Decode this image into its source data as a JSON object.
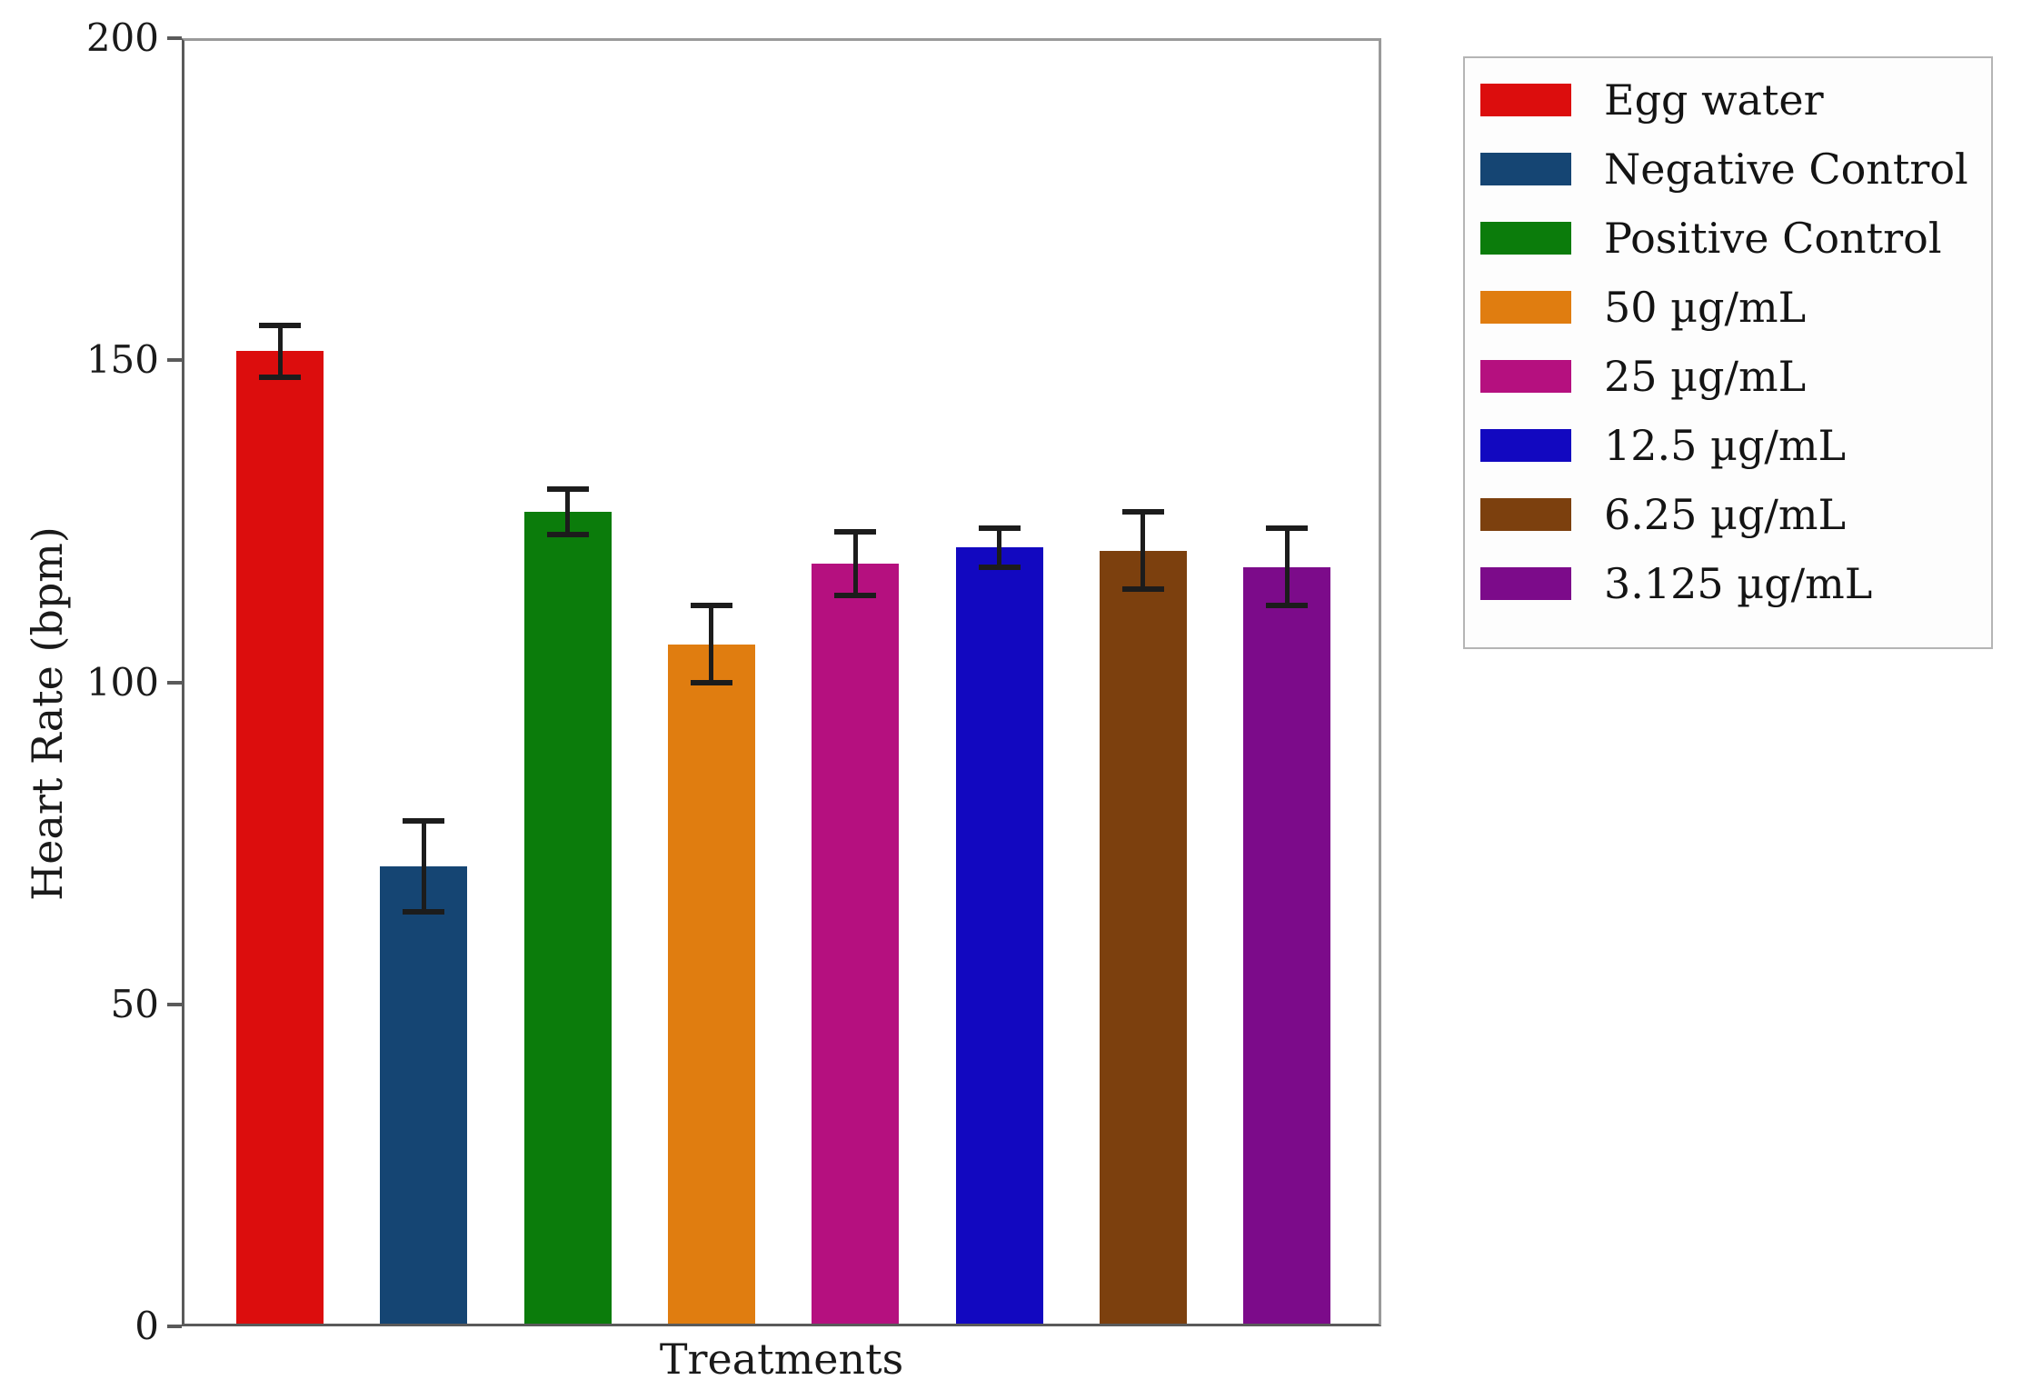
{
  "chart_data": {
    "type": "bar",
    "title": "",
    "xlabel": "Treatments",
    "ylabel": "Heart Rate (bpm)",
    "ylim": [
      0,
      200
    ],
    "yticks": [
      0,
      50,
      100,
      150,
      200
    ],
    "grid": false,
    "error_bars": true,
    "legend_position": "outside upper right",
    "categories": [
      "Egg water",
      "Negative Control",
      "Positive Control",
      "50 µg/mL",
      "25 µg/mL",
      "12.5 µg/mL",
      "6.25 µg/mL",
      "3.125 µg/mL"
    ],
    "series": [
      {
        "name": "Egg water",
        "value": 151,
        "error": 4,
        "color": "#dc0d0d"
      },
      {
        "name": "Negative Control",
        "value": 71,
        "error": 7,
        "color": "#154573"
      },
      {
        "name": "Positive Control",
        "value": 126,
        "error": 3.5,
        "color": "#0b7c0b"
      },
      {
        "name": "50 µg/mL",
        "value": 105.5,
        "error": 6,
        "color": "#e07d10"
      },
      {
        "name": "25 µg/mL",
        "value": 118,
        "error": 5,
        "color": "#b5107f"
      },
      {
        "name": "12.5 µg/mL",
        "value": 120.5,
        "error": 3,
        "color": "#1208c0"
      },
      {
        "name": "6.25 µg/mL",
        "value": 120,
        "error": 6,
        "color": "#7c400e"
      },
      {
        "name": "3.125 µg/mL",
        "value": 117.5,
        "error": 6,
        "color": "#7c0b8a"
      }
    ]
  }
}
